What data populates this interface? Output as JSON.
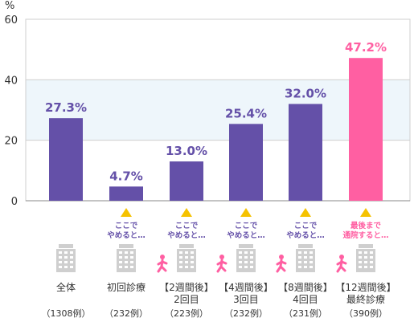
{
  "chart_data": {
    "type": "bar",
    "ylabel": "%",
    "ylim": [
      0,
      60
    ],
    "yticks": [
      0,
      20,
      40,
      60
    ],
    "grid": true,
    "highlight_band": [
      20,
      40
    ],
    "categories": [
      {
        "label": "全体",
        "sublabel": "",
        "count": "（1308例）",
        "icon": "clinic-building-icon",
        "walker": false
      },
      {
        "label": "初回診療",
        "sublabel": "",
        "count": "（232例）",
        "icon": "clinic-building-icon",
        "walker": false
      },
      {
        "label": "【2週間後】",
        "sublabel": "2回目",
        "count": "（223例）",
        "icon": "clinic-building-icon",
        "walker": true
      },
      {
        "label": "【4週間後】",
        "sublabel": "3回目",
        "count": "（232例）",
        "icon": "clinic-building-icon",
        "walker": true
      },
      {
        "label": "【8週間後】",
        "sublabel": "4回目",
        "count": "（231例）",
        "icon": "clinic-building-icon",
        "walker": true
      },
      {
        "label": "【12週間後】",
        "sublabel": "最終診療",
        "count": "（390例）",
        "icon": "clinic-building-icon",
        "walker": true
      }
    ],
    "values": [
      27.3,
      4.7,
      13.0,
      25.4,
      32.0,
      47.2
    ],
    "value_labels": [
      "27.3%",
      "4.7%",
      "13.0%",
      "25.4%",
      "32.0%",
      "47.2%"
    ],
    "bar_colors": [
      "#6450a8",
      "#6450a8",
      "#6450a8",
      "#6450a8",
      "#6450a8",
      "#ff5fa2"
    ],
    "annotations": [
      null,
      {
        "line1": "ここで",
        "line2": "やめると…",
        "color": "#6450a8"
      },
      {
        "line1": "ここで",
        "line2": "やめると…",
        "color": "#6450a8"
      },
      {
        "line1": "ここで",
        "line2": "やめると…",
        "color": "#6450a8"
      },
      {
        "line1": "ここで",
        "line2": "やめると…",
        "color": "#6450a8"
      },
      {
        "line1": "最後まで",
        "line2": "通院すると…",
        "color": "#ff5fa2"
      }
    ]
  },
  "colors": {
    "bar": "#6450a8",
    "highlight": "#ff5fa2",
    "triangle": "#f5c200",
    "band": "#eef6fb",
    "icon": "#cfcfcf",
    "walker": "#ff5fa2"
  }
}
